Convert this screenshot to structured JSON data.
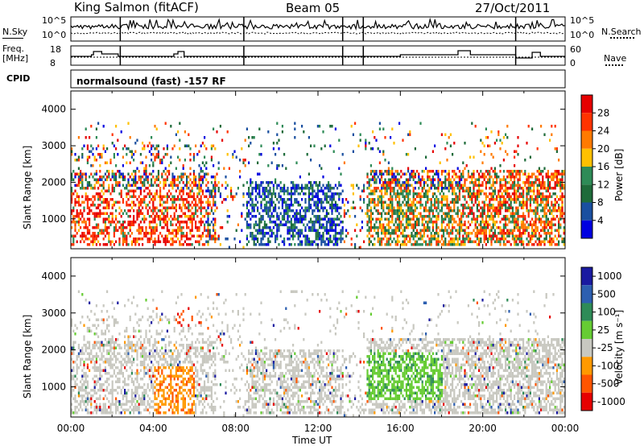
{
  "header": {
    "station": "King Salmon (fitACF)",
    "beam": "Beam 05",
    "date": "27/Oct/2011"
  },
  "status_panels": {
    "nsky_label": "N.Sky",
    "nsky_ticks": [
      "10^5",
      "10^0"
    ],
    "nsearch_label": "N.Search",
    "nsearch_ticks": [
      "10^5",
      "10^0"
    ],
    "freq_label_line1": "Freq.",
    "freq_label_line2": "[MHz]",
    "freq_ticks": [
      "18",
      "8"
    ],
    "nave_label": "Nave",
    "nave_ticks": [
      "60",
      "0"
    ],
    "cpid_label": "CPID",
    "cpid_value": "normalsound (fast) -157 RF"
  },
  "chart_data": [
    {
      "type": "heatmap",
      "name": "power",
      "ylabel": "Slant Range [km]",
      "xlabel": "",
      "xlim": [
        0,
        24
      ],
      "ylim": [
        180,
        4500
      ],
      "y_ticks": [
        "4000",
        "3000",
        "2000",
        "1000"
      ],
      "y_tick_values": [
        4000,
        3000,
        2000,
        1000
      ],
      "colorbar": {
        "label": "Power [dB]",
        "ticks": [
          "28",
          "24",
          "20",
          "16",
          "12",
          "8",
          "4"
        ],
        "colors": [
          "#e60000",
          "#ff3300",
          "#ff7a00",
          "#ffc000",
          "#2e8b57",
          "#1e6b3a",
          "#1a4fa0",
          "#0000e0"
        ]
      }
    },
    {
      "type": "heatmap",
      "name": "velocity",
      "ylabel": "Slant Range [km]",
      "xlabel": "Time UT",
      "xlim": [
        0,
        24
      ],
      "ylim": [
        180,
        4500
      ],
      "x_ticks": [
        "00:00",
        "04:00",
        "08:00",
        "12:00",
        "16:00",
        "20:00",
        "00:00"
      ],
      "x_tick_values": [
        0,
        4,
        8,
        12,
        16,
        20,
        24
      ],
      "y_ticks": [
        "4000",
        "3000",
        "2000",
        "1000"
      ],
      "y_tick_values": [
        4000,
        3000,
        2000,
        1000
      ],
      "colorbar": {
        "label": "Velocity [m s⁻¹]",
        "ticks": [
          "1000",
          "500",
          "100",
          "25",
          "-25",
          "-100",
          "-500",
          "-1000"
        ],
        "colors": [
          "#1a1aa0",
          "#2d5fb0",
          "#2e8b57",
          "#66cc33",
          "#c8c8c0",
          "#ff9900",
          "#ff5500",
          "#e60000"
        ]
      }
    }
  ]
}
